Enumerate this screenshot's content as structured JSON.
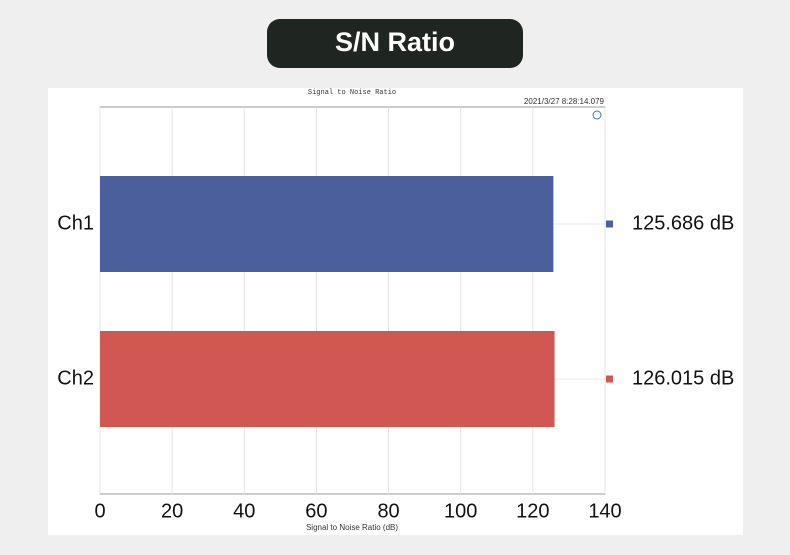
{
  "header": {
    "title": "S/N Ratio"
  },
  "chart_data": {
    "type": "hbar",
    "title": "Signal to Noise Ratio",
    "subtitle": "2021/3/27 8:28:14.079",
    "x_label": "Signal to Noise Ratio (dB)",
    "categories": [
      "Ch1",
      "Ch2"
    ],
    "values": [
      125.686,
      126.015
    ],
    "value_labels": [
      "125.686 dB",
      "126.015 dB"
    ],
    "colors": [
      "#4a5f9c",
      "#d05752"
    ],
    "xlim": [
      0,
      140
    ],
    "xticks": [
      0,
      20,
      40,
      60,
      80,
      100,
      120,
      140
    ],
    "grid": true
  }
}
